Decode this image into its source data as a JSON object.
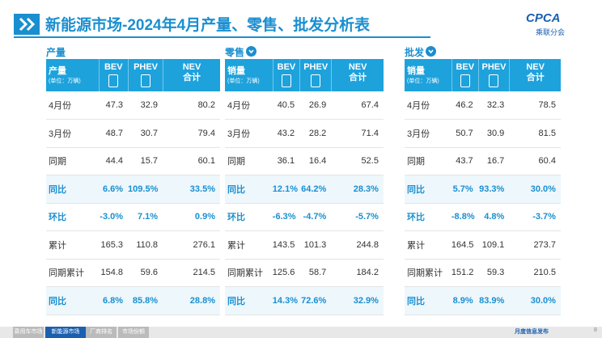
{
  "header": {
    "title": "新能源市场-2024年4月产量、零售、批发分析表",
    "logo": "CPCA",
    "logo_sub": "乘联分会"
  },
  "sections": [
    {
      "label": "产量",
      "corner": "产量",
      "unit": "(单位：万辆)",
      "columns": [
        [
          "BEV"
        ],
        [
          "PHEV"
        ],
        [
          "NEV",
          "合计"
        ]
      ],
      "rows": [
        {
          "label": "4月份",
          "values": [
            "47.3",
            "32.9",
            "80.2"
          ]
        },
        {
          "label": "3月份",
          "values": [
            "48.7",
            "30.7",
            "79.4"
          ]
        },
        {
          "label": "同期",
          "values": [
            "44.4",
            "15.7",
            "60.1"
          ]
        },
        {
          "label": "同比",
          "values": [
            "6.6%",
            "109.5%",
            "33.5%"
          ]
        },
        {
          "label": "环比",
          "values": [
            "-3.0%",
            "7.1%",
            "0.9%"
          ]
        },
        {
          "label": "累计",
          "values": [
            "165.3",
            "110.8",
            "276.1"
          ]
        },
        {
          "label": "同期累计",
          "values": [
            "154.8",
            "59.6",
            "214.5"
          ]
        },
        {
          "label": "同比",
          "values": [
            "6.8%",
            "85.8%",
            "28.8%"
          ]
        }
      ]
    },
    {
      "label": "零售",
      "corner": "销量",
      "unit": "(单位：万辆)",
      "columns": [
        [
          "BEV"
        ],
        [
          "PHEV"
        ],
        [
          "NEV",
          "合计"
        ]
      ],
      "rows": [
        {
          "label": "4月份",
          "values": [
            "40.5",
            "26.9",
            "67.4"
          ]
        },
        {
          "label": "3月份",
          "values": [
            "43.2",
            "28.2",
            "71.4"
          ]
        },
        {
          "label": "同期",
          "values": [
            "36.1",
            "16.4",
            "52.5"
          ]
        },
        {
          "label": "同比",
          "values": [
            "12.1%",
            "64.2%",
            "28.3%"
          ]
        },
        {
          "label": "环比",
          "values": [
            "-6.3%",
            "-4.7%",
            "-5.7%"
          ]
        },
        {
          "label": "累计",
          "values": [
            "143.5",
            "101.3",
            "244.8"
          ]
        },
        {
          "label": "同期累计",
          "values": [
            "125.6",
            "58.7",
            "184.2"
          ]
        },
        {
          "label": "同比",
          "values": [
            "14.3%",
            "72.6%",
            "32.9%"
          ]
        }
      ]
    },
    {
      "label": "批发",
      "corner": "销量",
      "unit": "(单位：万辆)",
      "columns": [
        [
          "BEV"
        ],
        [
          "PHEV"
        ],
        [
          "NEV",
          "合计"
        ]
      ],
      "rows": [
        {
          "label": "4月份",
          "values": [
            "46.2",
            "32.3",
            "78.5"
          ]
        },
        {
          "label": "3月份",
          "values": [
            "50.7",
            "30.9",
            "81.5"
          ]
        },
        {
          "label": "同期",
          "values": [
            "43.7",
            "16.7",
            "60.4"
          ]
        },
        {
          "label": "同比",
          "values": [
            "5.7%",
            "93.3%",
            "30.0%"
          ]
        },
        {
          "label": "环比",
          "values": [
            "-8.8%",
            "4.8%",
            "-3.7%"
          ]
        },
        {
          "label": "累计",
          "values": [
            "164.5",
            "109.1",
            "273.7"
          ]
        },
        {
          "label": "同期累计",
          "values": [
            "151.2",
            "59.3",
            "210.5"
          ]
        },
        {
          "label": "同比",
          "values": [
            "8.9%",
            "83.9%",
            "30.0%"
          ]
        }
      ]
    }
  ],
  "footer": {
    "tabs": [
      "乘用车市场",
      "新能源市场",
      "厂商排名",
      "市场份额"
    ],
    "note": "月度信息发布",
    "page": "8"
  }
}
